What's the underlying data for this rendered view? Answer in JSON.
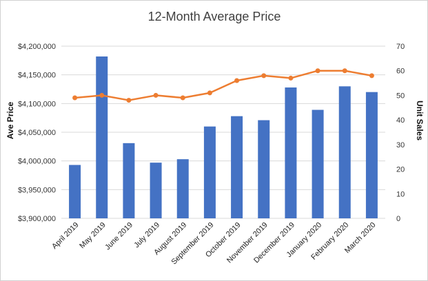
{
  "chart_data": {
    "type": "bar+line",
    "title": "12-Month Average Price",
    "categories": [
      "April 2019",
      "May 2019",
      "June 2019",
      "July 2019",
      "August 2019",
      "September 2019",
      "October 2019",
      "November 2019",
      "December 2019",
      "January 2020",
      "February 2020",
      "March 2020"
    ],
    "series": [
      {
        "type": "bar",
        "axis": "left",
        "color": "#4472C4",
        "values": [
          3993000,
          4182000,
          4031000,
          3997000,
          4003000,
          4060000,
          4078000,
          4071000,
          4128000,
          4089000,
          4130000,
          4120000
        ]
      },
      {
        "type": "line",
        "axis": "right",
        "color": "#ED7D31",
        "values": [
          49,
          50,
          48,
          50,
          49,
          51,
          56,
          58,
          57,
          60,
          60,
          58
        ]
      }
    ],
    "ylabel": "Ave Price",
    "y2label": "Unit Sales",
    "ylim": [
      3900000,
      4200000
    ],
    "y2lim": [
      0,
      70
    ],
    "yticks": [
      "$3,900,000",
      "$3,950,000",
      "$4,000,000",
      "$4,050,000",
      "$4,100,000",
      "$4,150,000",
      "$4,200,000"
    ],
    "y2ticks": [
      "0",
      "10",
      "20",
      "30",
      "40",
      "50",
      "60",
      "70"
    ],
    "grid": true
  }
}
